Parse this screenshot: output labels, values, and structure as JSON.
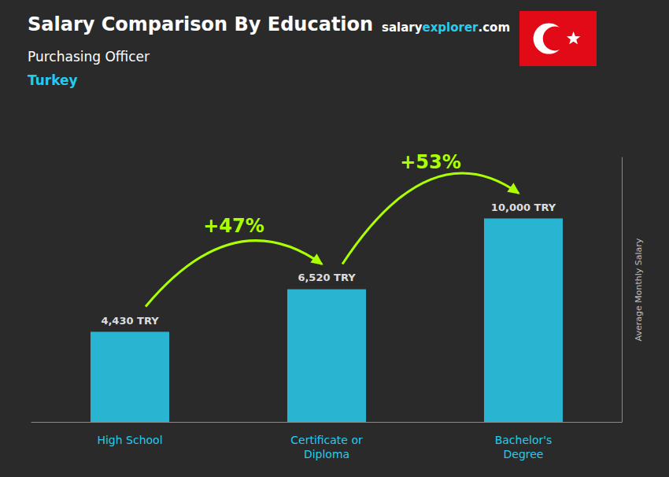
{
  "chart_data": {
    "type": "bar",
    "title": "Salary Comparison By Education",
    "subtitle": [
      "Purchasing Officer",
      "Turkey"
    ],
    "ylabel": "Average Monthly Salary",
    "annotations": [
      "+47%",
      "+53%",
      "salary",
      "explorer",
      ".com"
    ],
    "categories": [
      "High School",
      "Certificate or\nDiploma",
      "Bachelor's\nDegree"
    ],
    "values": [
      4430,
      6520,
      10000
    ],
    "value_labels": [
      "4,430 TRY",
      "6,520 TRY",
      "10,000 TRY"
    ],
    "data_labels": true,
    "color": "#29ccee",
    "ylim": [
      0,
      13000
    ],
    "tick_labels": "x",
    "grid": false
  }
}
